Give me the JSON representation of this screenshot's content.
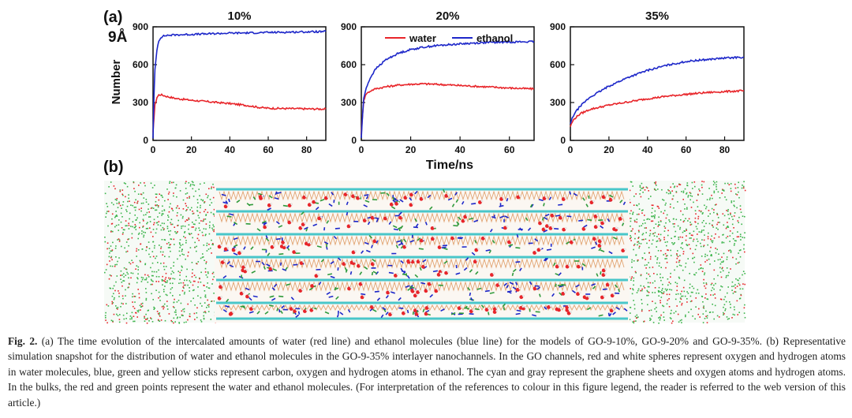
{
  "panel_a_label": "(a)",
  "panel_b_label": "(b)",
  "spacing_label": "9Å",
  "y_axis_label": "Number",
  "x_axis_label": "Time/ns",
  "caption": {
    "lead": "Fig. 2.",
    "text": " (a) The time evolution of the intercalated amounts of water (red line) and ethanol molecules (blue line) for the models of GO-9-10%, GO-9-20% and GO-9-35%. (b) Representative simulation snapshot for the distribution of water and ethanol molecules in the GO-9-35% interlayer nanochannels. In the GO channels, red and white spheres represent oxygen and hydrogen atoms in water molecules, blue, green and yellow sticks represent carbon, oxygen and hydrogen atoms in ethanol. The cyan and gray represent the graphene sheets and oxygen atoms and hydrogen atoms. In the bulks, the red and green points represent the water and ethanol molecules. (For interpretation of the references to colour in this figure legend, the reader is referred to the web version of this article.)"
  },
  "colors": {
    "water": "#e8252a",
    "ethanol": "#1d27c9",
    "bulk_points": "#3ab34a",
    "graphene": "#49c6c9"
  },
  "chart_data": [
    {
      "type": "line",
      "title": "10%",
      "ylabel": "Number",
      "xlabel": "",
      "xlim": [
        0,
        90
      ],
      "ylim": [
        0,
        900
      ],
      "xticks": [
        0,
        20,
        40,
        60,
        80
      ],
      "yticks": [
        0,
        300,
        600,
        900
      ],
      "series": [
        {
          "name": "water",
          "color": "#e8252a",
          "x": [
            0,
            0.5,
            1,
            2,
            3,
            4,
            5,
            8,
            12,
            20,
            30,
            40,
            50,
            55,
            60,
            70,
            80,
            90
          ],
          "y": [
            60,
            180,
            280,
            340,
            360,
            362,
            358,
            345,
            332,
            318,
            305,
            292,
            275,
            262,
            255,
            252,
            250,
            248
          ]
        },
        {
          "name": "ethanol",
          "color": "#1d27c9",
          "x": [
            0,
            0.5,
            1,
            2,
            3,
            4,
            5,
            7,
            10,
            15,
            20,
            30,
            40,
            50,
            60,
            70,
            80,
            90
          ],
          "y": [
            20,
            350,
            560,
            720,
            790,
            815,
            825,
            832,
            835,
            838,
            840,
            845,
            850,
            852,
            855,
            858,
            860,
            862
          ]
        }
      ]
    },
    {
      "type": "line",
      "title": "20%",
      "ylabel": "",
      "xlabel": "Time/ns",
      "xlim": [
        0,
        70
      ],
      "ylim": [
        0,
        900
      ],
      "xticks": [
        0,
        20,
        40,
        60
      ],
      "yticks": [
        0,
        300,
        600,
        900
      ],
      "legend": "top-right",
      "series": [
        {
          "name": "water",
          "color": "#e8252a",
          "x": [
            0,
            0.5,
            1,
            2,
            4,
            6,
            10,
            15,
            20,
            25,
            30,
            40,
            50,
            60,
            70
          ],
          "y": [
            50,
            200,
            320,
            370,
            395,
            410,
            425,
            438,
            445,
            448,
            445,
            435,
            425,
            415,
            408
          ]
        },
        {
          "name": "ethanol",
          "color": "#1d27c9",
          "x": [
            0,
            0.5,
            1,
            2,
            4,
            6,
            10,
            15,
            20,
            25,
            30,
            40,
            50,
            60,
            70
          ],
          "y": [
            20,
            200,
            330,
            420,
            510,
            570,
            640,
            690,
            720,
            738,
            750,
            765,
            775,
            780,
            782
          ]
        }
      ]
    },
    {
      "type": "line",
      "title": "35%",
      "ylabel": "",
      "xlabel": "",
      "xlim": [
        0,
        90
      ],
      "ylim": [
        0,
        900
      ],
      "xticks": [
        0,
        20,
        40,
        60,
        80
      ],
      "yticks": [
        0,
        300,
        600,
        900
      ],
      "series": [
        {
          "name": "water",
          "color": "#e8252a",
          "x": [
            0,
            1,
            2,
            5,
            10,
            20,
            30,
            40,
            50,
            60,
            70,
            80,
            90
          ],
          "y": [
            110,
            145,
            170,
            210,
            245,
            280,
            305,
            330,
            350,
            365,
            378,
            387,
            393
          ]
        },
        {
          "name": "ethanol",
          "color": "#1d27c9",
          "x": [
            0,
            1,
            2,
            5,
            10,
            20,
            30,
            40,
            50,
            60,
            70,
            80,
            90
          ],
          "y": [
            130,
            175,
            210,
            270,
            340,
            430,
            500,
            555,
            595,
            625,
            640,
            652,
            660
          ]
        }
      ]
    }
  ]
}
